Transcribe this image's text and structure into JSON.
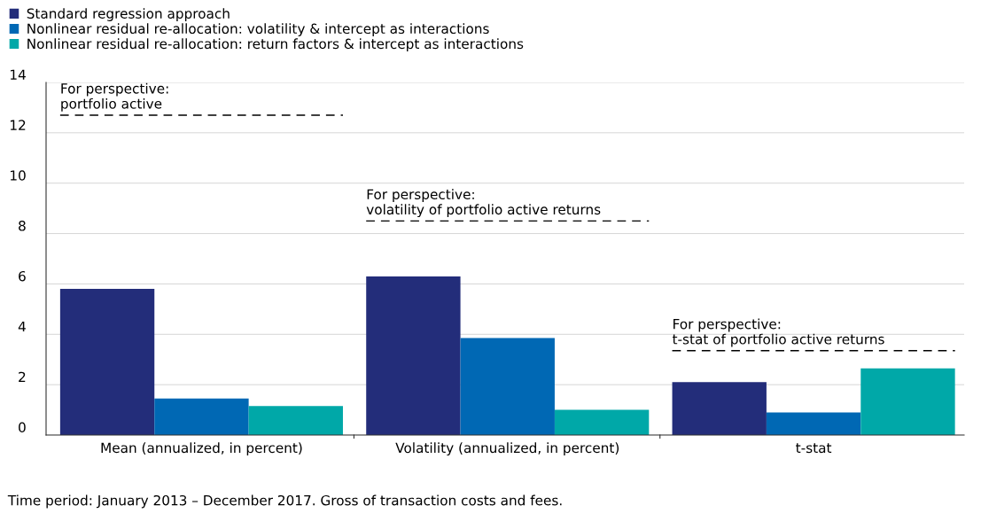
{
  "chart_data": {
    "type": "bar",
    "categories": [
      "Mean (annualized, in percent)",
      "Volatility (annualized, in percent)",
      "t-stat"
    ],
    "series": [
      {
        "name": "Standard regression approach",
        "color": "#232d7a",
        "values": [
          5.8,
          6.3,
          2.1
        ]
      },
      {
        "name": "Nonlinear residual re-allocation: volatility & intercept as interactions",
        "color": "#0068b4",
        "values": [
          1.45,
          3.85,
          0.9
        ]
      },
      {
        "name": "Nonlinear residual re-allocation: return factors & intercept as interactions",
        "color": "#00a8a8",
        "values": [
          1.15,
          1.0,
          2.65
        ]
      }
    ],
    "ylim": [
      0,
      14
    ],
    "yticks": [
      0,
      2,
      4,
      6,
      8,
      10,
      12,
      14
    ],
    "grid": "y",
    "legend": "top left",
    "ref_lines": [
      {
        "axis": "y",
        "value": 12.7,
        "label": "For perspective:\nportfolio active",
        "color": "#000000",
        "line_style": "dashed"
      },
      {
        "axis": "y",
        "value": 8.5,
        "label": "For perspective:\nvolatility of portfolio active returns",
        "color": "#000000",
        "line_style": "dashed"
      },
      {
        "axis": "y",
        "value": 3.35,
        "label": "For perspective:\nt-stat of portfolio active returns",
        "color": "#000000",
        "line_style": "dashed"
      }
    ],
    "annotations": [
      "Time period: January 2013 – December 2017. Gross of transaction costs and fees."
    ]
  }
}
